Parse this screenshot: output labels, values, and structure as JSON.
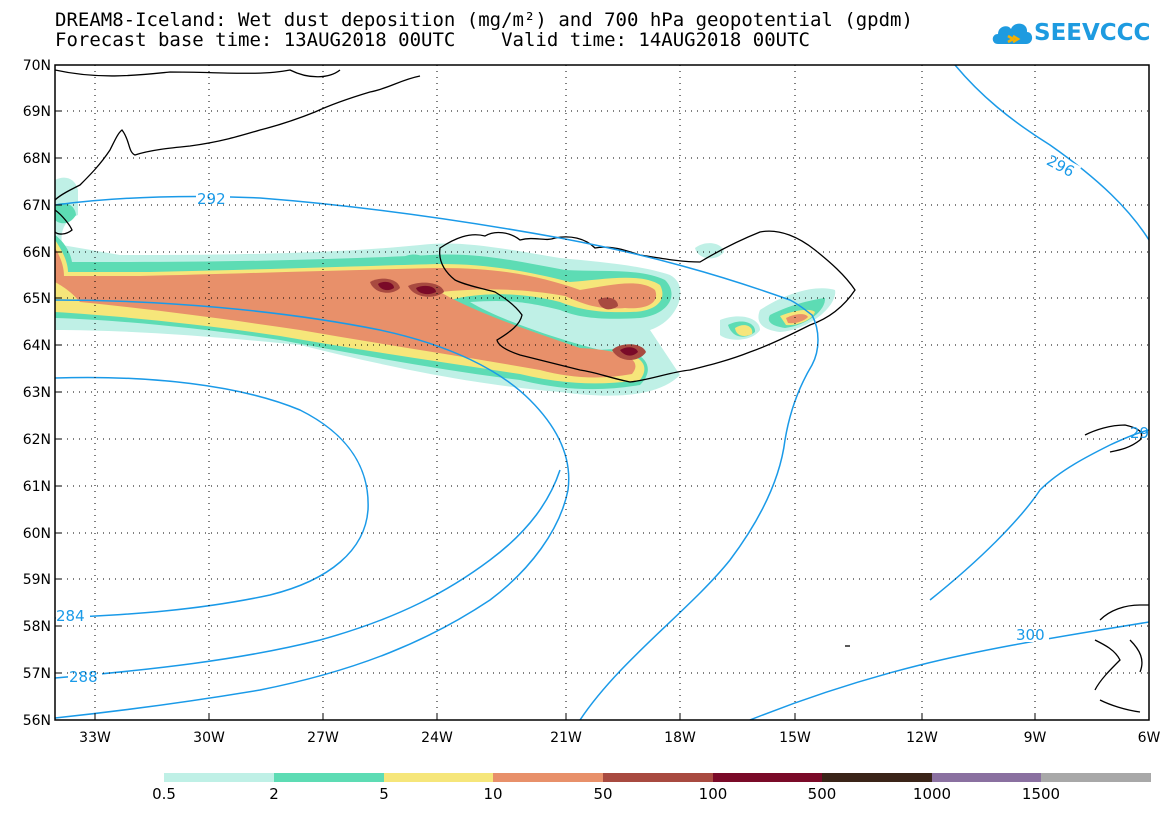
{
  "title_line1": "DREAM8-Iceland: Wet dust deposition (mg/m²) and 700 hPa geopotential (gpdm)",
  "title_line2": "Forecast base time: 13AUG2018 00UTC    Valid time: 14AUG2018 00UTC",
  "logo_text": "SEEVCCC",
  "lat_labels": [
    "70N",
    "69N",
    "68N",
    "67N",
    "66N",
    "65N",
    "64N",
    "63N",
    "62N",
    "61N",
    "60N",
    "59N",
    "58N",
    "57N",
    "56N"
  ],
  "lon_labels": [
    "33W",
    "30W",
    "27W",
    "24W",
    "21W",
    "18W",
    "15W",
    "12W",
    "9W",
    "6W"
  ],
  "contour_labels": [
    "292",
    "296",
    "284",
    "288",
    "300",
    "29"
  ],
  "legend": {
    "labels": [
      "0.5",
      "2",
      "5",
      "10",
      "50",
      "100",
      "500",
      "1000",
      "1500"
    ],
    "colors": [
      "#bff0e6",
      "#5ddcb4",
      "#f6e67a",
      "#e8906a",
      "#a84a40",
      "#7a0a28",
      "#3a2418",
      "#8a70a0",
      "#a8a8a8"
    ]
  },
  "colors": {
    "contour": "#1a9ae8",
    "coast": "#000000",
    "grid": "#000000"
  }
}
